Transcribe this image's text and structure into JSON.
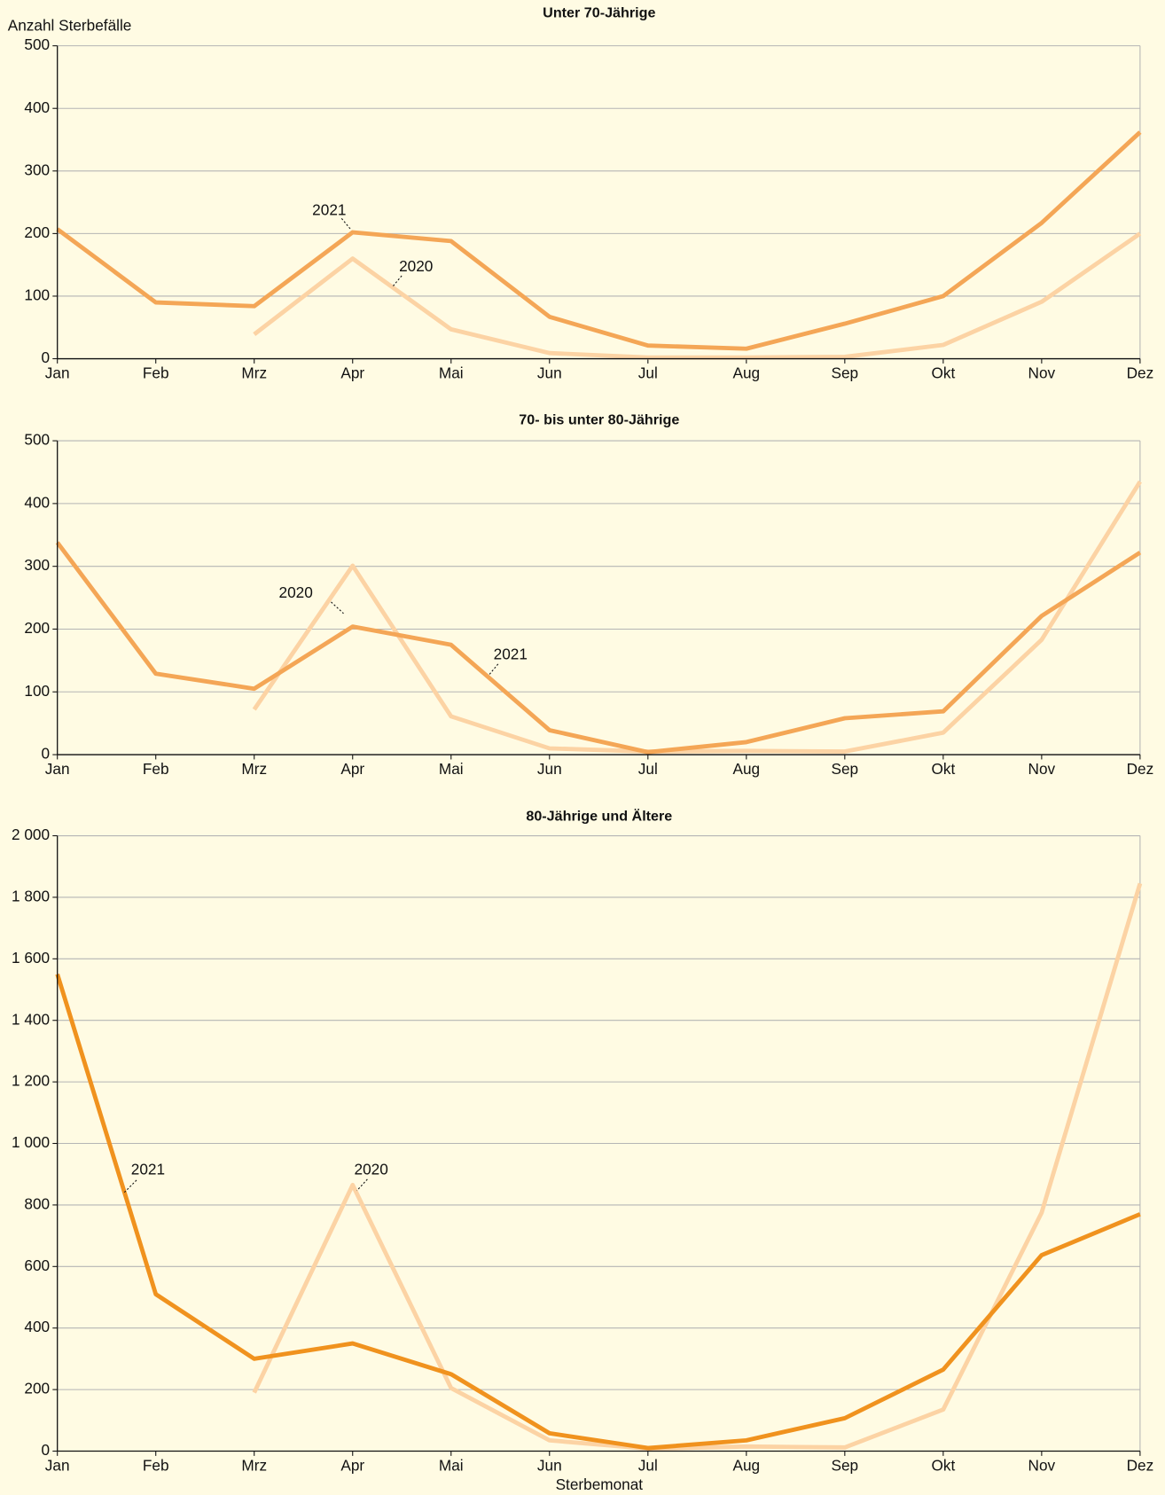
{
  "chart_data": [
    {
      "type": "line",
      "title": "Unter 70-Jährige",
      "y_label": "Anzahl Sterbefälle",
      "categories": [
        "Jan",
        "Feb",
        "Mrz",
        "Apr",
        "Mai",
        "Jun",
        "Jul",
        "Aug",
        "Sep",
        "Okt",
        "Nov",
        "Dez"
      ],
      "series": [
        {
          "name": "2020",
          "color": "#fcd3a4",
          "values": [
            null,
            null,
            39,
            160,
            47,
            9,
            2,
            2,
            3,
            22,
            91,
            200
          ]
        },
        {
          "name": "2021",
          "color": "#f4a656",
          "values": [
            207,
            90,
            84,
            202,
            188,
            67,
            21,
            16,
            56,
            100,
            217,
            362
          ]
        }
      ],
      "ylim": [
        0,
        500
      ],
      "yticks": [
        0,
        100,
        200,
        300,
        400,
        500
      ],
      "grid": true
    },
    {
      "type": "line",
      "title": "70- bis unter 80-Jährige",
      "categories": [
        "Jan",
        "Feb",
        "Mrz",
        "Apr",
        "Mai",
        "Jun",
        "Jul",
        "Aug",
        "Sep",
        "Okt",
        "Nov",
        "Dez"
      ],
      "series": [
        {
          "name": "2020",
          "color": "#fcd3a4",
          "values": [
            null,
            null,
            72,
            301,
            61,
            10,
            5,
            6,
            5,
            35,
            183,
            435
          ]
        },
        {
          "name": "2021",
          "color": "#f4a656",
          "values": [
            338,
            129,
            105,
            204,
            175,
            39,
            4,
            20,
            58,
            69,
            221,
            322
          ]
        }
      ],
      "ylim": [
        0,
        500
      ],
      "yticks": [
        0,
        100,
        200,
        300,
        400,
        500
      ],
      "grid": true
    },
    {
      "type": "line",
      "title": "80-Jährige und Ältere",
      "x_label": "Sterbemonat",
      "categories": [
        "Jan",
        "Feb",
        "Mrz",
        "Apr",
        "Mai",
        "Jun",
        "Jul",
        "Aug",
        "Sep",
        "Okt",
        "Nov",
        "Dez"
      ],
      "series": [
        {
          "name": "2020",
          "color": "#fcd3a4",
          "values": [
            null,
            null,
            190,
            865,
            205,
            35,
            8,
            15,
            12,
            135,
            775,
            1845
          ]
        },
        {
          "name": "2021",
          "color": "#f0921e",
          "values": [
            1550,
            510,
            300,
            350,
            250,
            58,
            10,
            35,
            107,
            265,
            637,
            770
          ]
        }
      ],
      "ylim": [
        0,
        2000
      ],
      "yticks": [
        0,
        200,
        400,
        600,
        800,
        {
          "value": 1000,
          "label": "1 000"
        },
        {
          "value": 1200,
          "label": "1 200"
        },
        {
          "value": 1400,
          "label": "1 400"
        },
        {
          "value": 1600,
          "label": "1 600"
        },
        {
          "value": 1800,
          "label": "1 800"
        },
        {
          "value": 2000,
          "label": "2 000"
        }
      ],
      "grid": true
    }
  ]
}
